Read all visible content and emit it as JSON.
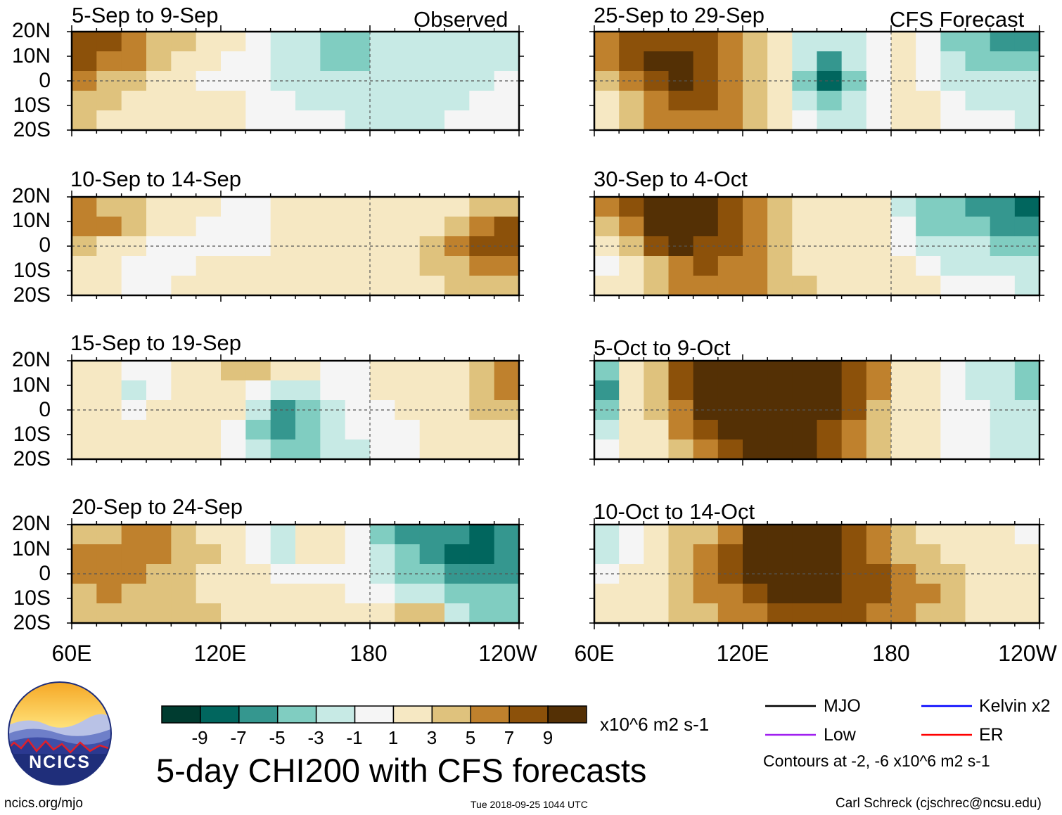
{
  "chart_data": {
    "type": "heatmap",
    "title": "5-day CHI200 with CFS forecasts",
    "variable": "CHI200",
    "units": "x10^6 m2 s-1",
    "x_ticks": [
      "60E",
      "120E",
      "180",
      "120W"
    ],
    "y_ticks": [
      "20N",
      "10N",
      "0",
      "10S",
      "20S"
    ],
    "x_range": [
      60,
      240
    ],
    "y_range": [
      -20,
      20
    ],
    "colorbar": {
      "ticks": [
        "-9",
        "-7",
        "-5",
        "-3",
        "-1",
        "1",
        "3",
        "5",
        "7",
        "9"
      ],
      "colors": [
        "#003c30",
        "#01665e",
        "#35978f",
        "#80cdc1",
        "#c7eae5",
        "#f5f5f5",
        "#f6e8c3",
        "#dfc27d",
        "#bf812d",
        "#8c510a",
        "#543005"
      ]
    },
    "columns": [
      {
        "label": "Observed"
      },
      {
        "label": "CFS Forecast"
      }
    ],
    "panels": [
      {
        "period": "5-Sep to 9-Sep",
        "column": 0,
        "rows": [
          [
            8,
            7,
            5,
            4,
            3,
            2,
            1,
            -1,
            -2,
            -3,
            -4,
            -4,
            -3,
            -2,
            -2,
            -3,
            -2,
            -3
          ],
          [
            7,
            6,
            5,
            4,
            2,
            1,
            0,
            -1,
            -2,
            -3,
            -4,
            -4,
            -3,
            -3,
            -2,
            -2,
            -2,
            -2
          ],
          [
            5,
            4,
            3,
            2,
            1,
            0,
            0,
            -1,
            -2,
            -2,
            -3,
            -3,
            -2,
            -2,
            -2,
            -2,
            -2,
            -1
          ],
          [
            3,
            3,
            2,
            1,
            1,
            2,
            1,
            -1,
            -1,
            -2,
            -2,
            -2,
            -2,
            -3,
            -3,
            -2,
            -1,
            -1
          ],
          [
            3,
            2,
            2,
            2,
            2,
            2,
            1,
            -1,
            -1,
            -1,
            -1,
            -2,
            -2,
            -2,
            -2,
            -1,
            -1,
            -1
          ]
        ]
      },
      {
        "period": "25-Sep to 29-Sep",
        "column": 1,
        "rows": [
          [
            6,
            7,
            8,
            8,
            7,
            5,
            3,
            1,
            -2,
            -3,
            -2,
            -1,
            1,
            -1,
            -4,
            -5,
            -6,
            -6
          ],
          [
            5,
            7,
            9,
            9,
            8,
            6,
            4,
            1,
            -3,
            -6,
            -3,
            -1,
            1,
            -1,
            -3,
            -4,
            -5,
            -5
          ],
          [
            3,
            6,
            8,
            9,
            8,
            6,
            4,
            1,
            -4,
            -8,
            -4,
            -1,
            1,
            -1,
            -2,
            -3,
            -3,
            -3
          ],
          [
            1,
            3,
            6,
            8,
            7,
            6,
            4,
            2,
            -2,
            -5,
            -3,
            -1,
            1,
            1,
            -1,
            -2,
            -2,
            -3
          ],
          [
            2,
            3,
            5,
            6,
            6,
            5,
            4,
            2,
            -1,
            -3,
            -2,
            -1,
            1,
            1,
            -1,
            -1,
            -1,
            -2
          ]
        ]
      },
      {
        "period": "10-Sep to 14-Sep",
        "column": 0,
        "rows": [
          [
            5,
            4,
            3,
            2,
            1,
            1,
            -1,
            -1,
            1,
            1,
            1,
            1,
            1,
            1,
            1,
            2,
            3,
            4
          ],
          [
            6,
            5,
            3,
            2,
            1,
            0,
            -1,
            -1,
            1,
            1,
            1,
            1,
            1,
            2,
            2,
            4,
            6,
            7
          ],
          [
            3,
            2,
            1,
            0,
            0,
            0,
            -1,
            0,
            1,
            1,
            1,
            1,
            1,
            2,
            3,
            5,
            7,
            8
          ],
          [
            1,
            1,
            0,
            0,
            0,
            1,
            1,
            1,
            1,
            1,
            1,
            1,
            1,
            2,
            3,
            4,
            5,
            6
          ],
          [
            1,
            1,
            0,
            0,
            1,
            1,
            1,
            1,
            1,
            1,
            1,
            1,
            1,
            1,
            2,
            3,
            3,
            3
          ]
        ]
      },
      {
        "period": "30-Sep to 4-Oct",
        "column": 1,
        "rows": [
          [
            5,
            7,
            9,
            9,
            9,
            8,
            6,
            4,
            2,
            1,
            1,
            1,
            -2,
            -5,
            -5,
            -6,
            -7,
            -8
          ],
          [
            3,
            6,
            9,
            9,
            9,
            8,
            6,
            4,
            2,
            1,
            1,
            1,
            -1,
            -4,
            -4,
            -5,
            -6,
            -7
          ],
          [
            1,
            3,
            7,
            9,
            8,
            7,
            6,
            4,
            2,
            1,
            1,
            1,
            -1,
            -2,
            -3,
            -3,
            -4,
            -5
          ],
          [
            -1,
            1,
            4,
            6,
            7,
            6,
            5,
            4,
            2,
            2,
            1,
            1,
            1,
            -1,
            -2,
            -2,
            -2,
            -3
          ],
          [
            1,
            2,
            3,
            5,
            6,
            6,
            5,
            4,
            3,
            2,
            1,
            1,
            1,
            1,
            -1,
            -1,
            -1,
            -2
          ]
        ]
      },
      {
        "period": "15-Sep to 19-Sep",
        "column": 0,
        "rows": [
          [
            1,
            1,
            -1,
            -1,
            1,
            2,
            3,
            3,
            1,
            1,
            -1,
            -1,
            1,
            1,
            1,
            2,
            3,
            5
          ],
          [
            1,
            1,
            -2,
            -1,
            1,
            2,
            2,
            -1,
            -3,
            -2,
            -1,
            -1,
            1,
            1,
            1,
            2,
            4,
            6
          ],
          [
            1,
            1,
            -1,
            1,
            1,
            1,
            1,
            -3,
            -6,
            -4,
            -2,
            -1,
            -1,
            1,
            1,
            2,
            3,
            4
          ],
          [
            2,
            1,
            1,
            1,
            1,
            1,
            -1,
            -4,
            -7,
            -5,
            -3,
            -1,
            -1,
            -1,
            1,
            1,
            2,
            2
          ],
          [
            2,
            1,
            1,
            1,
            1,
            1,
            -1,
            -3,
            -5,
            -4,
            -3,
            -2,
            -1,
            -1,
            1,
            1,
            1,
            1
          ]
        ]
      },
      {
        "period": "5-Oct to 9-Oct",
        "column": 1,
        "rows": [
          [
            -4,
            1,
            4,
            8,
            9,
            9,
            9,
            9,
            9,
            9,
            8,
            5,
            2,
            1,
            -1,
            -2,
            -3,
            -5
          ],
          [
            -6,
            1,
            3,
            7,
            9,
            9,
            9,
            9,
            9,
            9,
            7,
            5,
            2,
            1,
            -1,
            -2,
            -3,
            -4
          ],
          [
            -5,
            1,
            3,
            6,
            9,
            9,
            9,
            9,
            9,
            9,
            7,
            4,
            2,
            1,
            -1,
            -1,
            -2,
            -3
          ],
          [
            -3,
            1,
            2,
            5,
            8,
            9,
            9,
            9,
            9,
            8,
            6,
            4,
            2,
            1,
            -1,
            -1,
            -2,
            -3
          ],
          [
            -1,
            1,
            2,
            4,
            6,
            8,
            9,
            9,
            9,
            7,
            5,
            3,
            2,
            1,
            -1,
            -1,
            -2,
            -2
          ]
        ]
      },
      {
        "period": "20-Sep to 24-Sep",
        "column": 0,
        "rows": [
          [
            4,
            4,
            5,
            5,
            4,
            2,
            1,
            -1,
            -2,
            1,
            1,
            -1,
            -4,
            -6,
            -7,
            -7,
            -8,
            -6
          ],
          [
            5,
            5,
            6,
            5,
            4,
            3,
            1,
            -1,
            -3,
            1,
            1,
            -1,
            -3,
            -5,
            -7,
            -8,
            -9,
            -7
          ],
          [
            6,
            6,
            5,
            4,
            3,
            2,
            1,
            1,
            -1,
            -1,
            -1,
            -1,
            -2,
            -4,
            -5,
            -6,
            -7,
            -6
          ],
          [
            4,
            5,
            4,
            4,
            3,
            2,
            1,
            1,
            1,
            1,
            1,
            -1,
            -1,
            -2,
            -3,
            -4,
            -5,
            -5
          ],
          [
            3,
            3,
            4,
            4,
            3,
            3,
            2,
            1,
            1,
            1,
            1,
            1,
            1,
            3,
            4,
            -2,
            -4,
            -4
          ]
        ]
      },
      {
        "period": "10-Oct to 14-Oct",
        "column": 1,
        "rows": [
          [
            -3,
            -1,
            1,
            3,
            4,
            6,
            9,
            9,
            9,
            9,
            7,
            5,
            3,
            2,
            1,
            1,
            1,
            -1
          ],
          [
            -2,
            -1,
            1,
            3,
            5,
            7,
            9,
            9,
            9,
            9,
            8,
            6,
            4,
            3,
            2,
            1,
            1,
            1
          ],
          [
            -1,
            1,
            2,
            4,
            6,
            7,
            9,
            9,
            9,
            9,
            8,
            7,
            5,
            4,
            3,
            2,
            1,
            1
          ],
          [
            1,
            1,
            2,
            3,
            5,
            6,
            8,
            9,
            9,
            9,
            8,
            7,
            6,
            5,
            3,
            2,
            1,
            1
          ],
          [
            1,
            1,
            2,
            3,
            4,
            5,
            6,
            7,
            8,
            8,
            7,
            6,
            5,
            4,
            3,
            2,
            2,
            1
          ]
        ]
      }
    ],
    "legend": [
      {
        "label": "MJO",
        "color": "#000000"
      },
      {
        "label": "Kelvin x2",
        "color": "#0000ff"
      },
      {
        "label": "Low",
        "color": "#a020f0"
      },
      {
        "label": "ER",
        "color": "#ff0000"
      }
    ],
    "contour_note": "Contours at -2, -6 x10^6 m2 s-1"
  },
  "footer": {
    "logo_text": "NCICS",
    "site": "ncics.org/mjo",
    "timestamp": "Tue 2018-09-25 1044 UTC",
    "credit": "Carl Schreck (cjschrec@ncsu.edu)"
  }
}
